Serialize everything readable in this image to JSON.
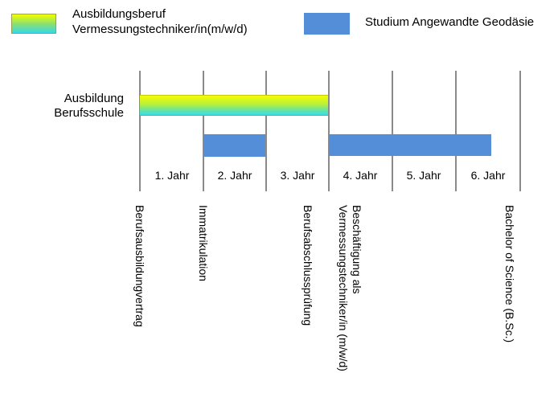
{
  "legend": {
    "item1": {
      "line1": "Ausbildungsberuf",
      "line2": "Vermessungstechniker/in(m/w/d)"
    },
    "item2": {
      "label": "Studium Angewandte Geodäsie"
    }
  },
  "row_label": {
    "line1": "Ausbildung",
    "line2": "Berufsschule"
  },
  "years": [
    "1. Jahr",
    "2. Jahr",
    "3. Jahr",
    "4. Jahr",
    "5. Jahr",
    "6. Jahr"
  ],
  "milestones": {
    "m1": "Berufsausbildungvertrag",
    "m2": "Immatrikulation",
    "m3": "Berufsabschlussprüfung",
    "m4_line1": "Beschäftigung als",
    "m4_line2": "Vermessungstechniker/in (m/w/d)",
    "m5": "Bachelor of Science (B.Sc.)"
  },
  "colors": {
    "study_blue": "#558ed8",
    "gradient_top": "#f4ff00",
    "gradient_bottom": "#38dde6",
    "grid_line": "#8a8a8a"
  }
}
